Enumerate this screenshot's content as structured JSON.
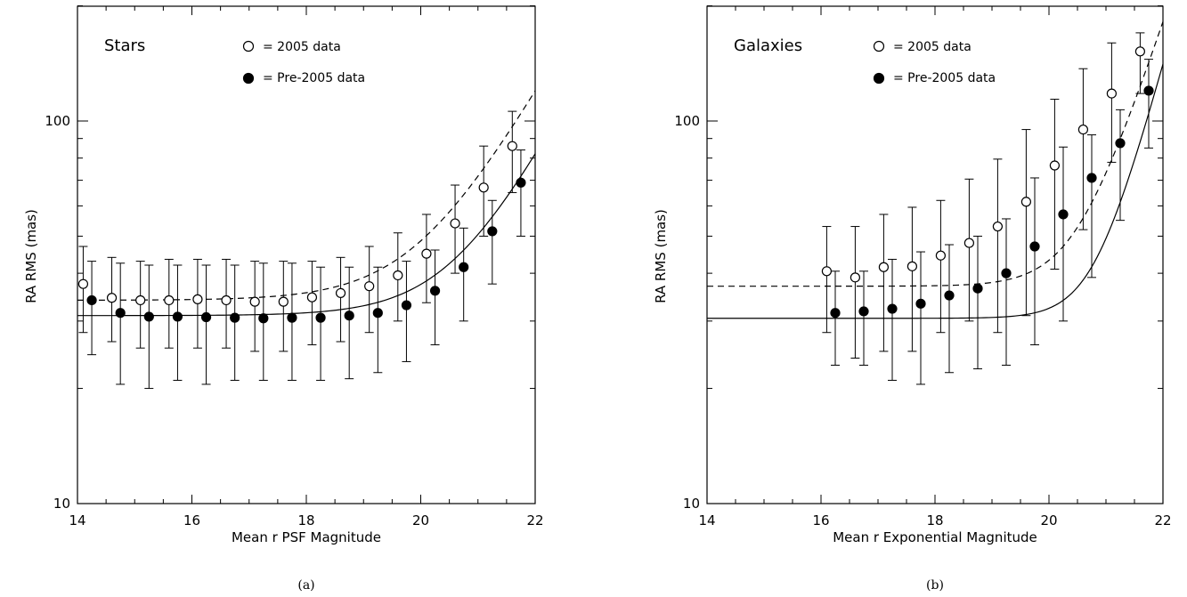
{
  "chart_data": [
    {
      "type": "scatter",
      "panel_label": "Stars",
      "caption": "(a)",
      "xlabel": "Mean r PSF Magnitude",
      "ylabel": "RA RMS (mas)",
      "xlim": [
        14,
        22
      ],
      "ylim": [
        10,
        180
      ],
      "y_scale": "log",
      "x_ticks": [
        "14",
        "16",
        "18",
        "20",
        "22"
      ],
      "y_ticks": [
        "10",
        "100"
      ],
      "legend": {
        "placement": "top",
        "open_label": "= 2005 data",
        "filled_label": "= Pre-2005 data"
      },
      "series": [
        {
          "name": "2005 data",
          "marker": "open-circle",
          "line": "dashed",
          "x": [
            14.1,
            14.6,
            15.1,
            15.6,
            16.1,
            16.6,
            17.1,
            17.6,
            18.1,
            18.6,
            19.1,
            19.6,
            20.1,
            20.6,
            21.1,
            21.6
          ],
          "y": [
            37.5,
            34.5,
            34,
            34,
            34.2,
            34,
            33.7,
            33.7,
            34.6,
            35.5,
            37,
            39.5,
            45,
            54,
            67,
            86
          ],
          "yerr_low": [
            28,
            26.5,
            25.5,
            25.5,
            25.5,
            25.5,
            25,
            25,
            26,
            26.5,
            28,
            30,
            33.5,
            40,
            50,
            65
          ],
          "yerr_high": [
            47,
            44,
            43,
            43.5,
            43.5,
            43.5,
            43,
            43,
            43,
            44,
            47,
            51,
            57,
            68,
            86,
            106
          ],
          "fit": {
            "floor": 34.0,
            "a": 1.15,
            "m0": 22.0,
            "b": 0.26
          }
        },
        {
          "name": "Pre-2005 data",
          "marker": "filled-circle",
          "line": "solid",
          "x": [
            14.25,
            14.75,
            15.25,
            15.75,
            16.25,
            16.75,
            17.25,
            17.75,
            18.25,
            18.75,
            19.25,
            19.75,
            20.25,
            20.75,
            21.25,
            21.75
          ],
          "y": [
            34,
            31.5,
            30.8,
            30.8,
            30.7,
            30.6,
            30.5,
            30.6,
            30.6,
            31,
            31.5,
            33,
            36,
            41.5,
            51.5,
            69
          ],
          "yerr_low": [
            24.5,
            20.5,
            20,
            21,
            20.5,
            21,
            21,
            21,
            21,
            21.2,
            22,
            23.5,
            26,
            30,
            37.5,
            50
          ],
          "yerr_high": [
            43,
            42.5,
            42,
            42,
            42,
            42,
            42.5,
            42.5,
            41.5,
            41.5,
            41.5,
            43,
            46,
            52.5,
            62,
            84
          ],
          "fit": {
            "floor": 31.0,
            "a": 0.76,
            "m0": 22.0,
            "b": 0.28
          }
        }
      ]
    },
    {
      "type": "scatter",
      "panel_label": "Galaxies",
      "caption": "(b)",
      "xlabel": "Mean r Exponential Magnitude",
      "ylabel": "RA RMS (mas)",
      "xlim": [
        14,
        22
      ],
      "ylim": [
        10,
        180
      ],
      "y_scale": "log",
      "x_ticks": [
        "14",
        "16",
        "18",
        "20",
        "22"
      ],
      "y_ticks": [
        "10",
        "100"
      ],
      "legend": {
        "placement": "top",
        "open_label": "= 2005 data",
        "filled_label": "= Pre-2005 data"
      },
      "series": [
        {
          "name": "2005 data",
          "marker": "open-circle",
          "line": "dashed",
          "x": [
            16.1,
            16.6,
            17.1,
            17.6,
            18.1,
            18.6,
            19.1,
            19.6,
            20.1,
            20.6,
            21.1,
            21.6
          ],
          "y": [
            40.5,
            39,
            41.5,
            41.7,
            44.5,
            48,
            53,
            61.5,
            76.5,
            95,
            118,
            152
          ],
          "yerr_low": [
            28,
            24,
            25,
            25,
            28,
            30,
            28,
            31,
            41,
            52,
            78,
            118
          ],
          "yerr_high": [
            53,
            53,
            57,
            59.5,
            62,
            70.5,
            79.5,
            95,
            114,
            137,
            160,
            170
          ],
          "fit": {
            "floor": 37.0,
            "a": 106.0,
            "m0": 21.5,
            "b": 0.45
          }
        },
        {
          "name": "Pre-2005 data",
          "marker": "filled-circle",
          "line": "solid",
          "x": [
            16.25,
            16.75,
            17.25,
            17.75,
            18.25,
            18.75,
            19.25,
            19.75,
            20.25,
            20.75,
            21.25,
            21.75
          ],
          "y": [
            31.5,
            31.8,
            32.3,
            33.3,
            35,
            36.5,
            40,
            47,
            57,
            71,
            87.5,
            120
          ],
          "yerr_low": [
            23,
            23,
            21,
            20.5,
            22,
            22.5,
            23,
            26,
            30,
            39,
            55,
            85
          ],
          "yerr_high": [
            40.5,
            40.5,
            43.5,
            45.5,
            47.5,
            50,
            55.5,
            71,
            85.5,
            92,
            107,
            145
          ],
          "fit": {
            "floor": 30.5,
            "a": 73.0,
            "m0": 21.5,
            "b": 0.55
          }
        }
      ]
    }
  ]
}
